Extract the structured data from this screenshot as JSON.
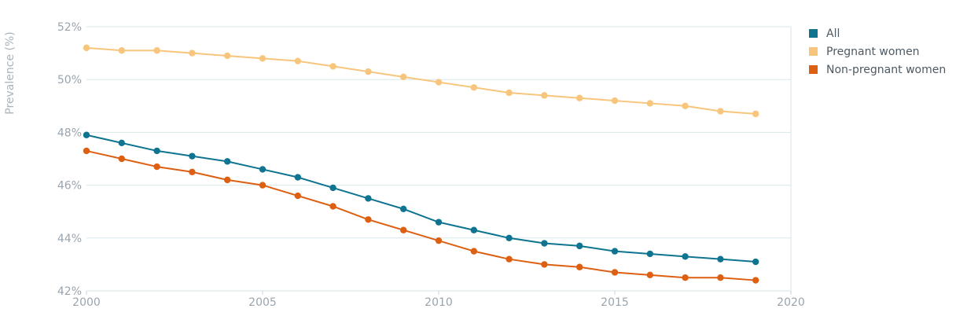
{
  "chart_data": {
    "type": "line",
    "title": "",
    "xlabel": "",
    "ylabel": "Prevalence (%)",
    "xlim": [
      2000,
      2020
    ],
    "ylim": [
      42,
      52
    ],
    "x_ticks": [
      2000,
      2005,
      2010,
      2015,
      2020
    ],
    "y_ticks": [
      "42%",
      "44%",
      "46%",
      "48%",
      "50%",
      "52%"
    ],
    "y_tick_values": [
      42,
      44,
      46,
      48,
      50,
      52
    ],
    "grid": true,
    "legend_position": "right",
    "x": [
      2000,
      2001,
      2002,
      2003,
      2004,
      2005,
      2006,
      2007,
      2008,
      2009,
      2010,
      2011,
      2012,
      2013,
      2014,
      2015,
      2016,
      2017,
      2018,
      2019
    ],
    "series": [
      {
        "name": "All",
        "color": "#0e7490",
        "values": [
          47.9,
          47.6,
          47.3,
          47.1,
          46.9,
          46.6,
          46.3,
          45.9,
          45.5,
          45.1,
          44.6,
          44.3,
          44.0,
          43.8,
          43.7,
          43.5,
          43.4,
          43.3,
          43.2,
          43.1
        ]
      },
      {
        "name": "Pregnant women",
        "color": "#f8c57c",
        "values": [
          51.2,
          51.1,
          51.1,
          51.0,
          50.9,
          50.8,
          50.7,
          50.5,
          50.3,
          50.1,
          49.9,
          49.7,
          49.5,
          49.4,
          49.3,
          49.2,
          49.1,
          49.0,
          48.8,
          48.7
        ]
      },
      {
        "name": "Non-pregnant women",
        "color": "#dd5f12",
        "values": [
          47.3,
          47.0,
          46.7,
          46.5,
          46.2,
          46.0,
          45.6,
          45.2,
          44.7,
          44.3,
          43.9,
          43.5,
          43.2,
          43.0,
          42.9,
          42.7,
          42.6,
          42.5,
          42.5,
          42.4
        ]
      }
    ]
  }
}
